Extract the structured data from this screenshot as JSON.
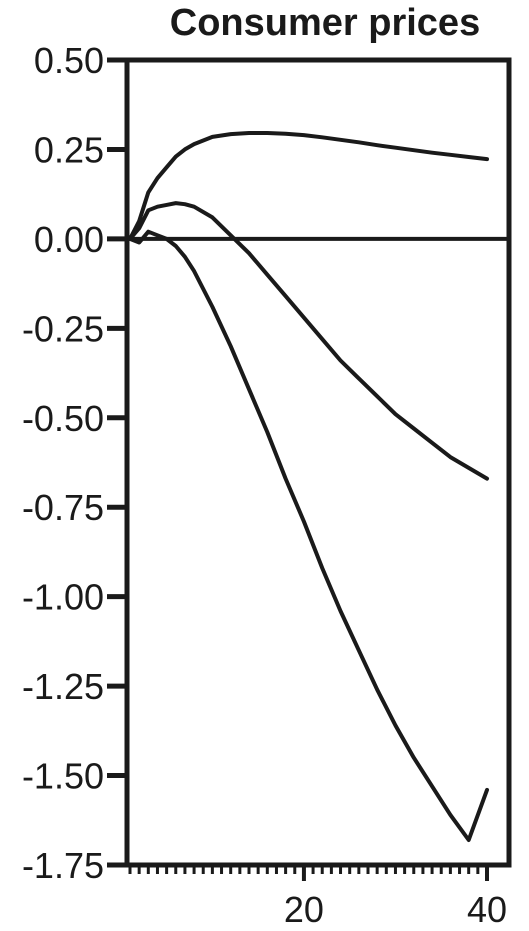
{
  "chart_data": {
    "type": "line",
    "title": "Consumer prices",
    "xlabel": "",
    "ylabel": "",
    "xlim": [
      0,
      42
    ],
    "ylim": [
      -1.75,
      0.5
    ],
    "grid": false,
    "legend": "none",
    "zero_line": true,
    "x_ticks": [
      20,
      40
    ],
    "y_ticks": [
      0.5,
      0.25,
      0.0,
      -0.25,
      -0.5,
      -0.75,
      -1.0,
      -1.25,
      -1.5,
      -1.75
    ],
    "y_tick_labels": [
      "0.50",
      "0.25",
      "0.00",
      "-0.25",
      "-0.50",
      "-0.75",
      "-1.00",
      "-1.25",
      "-1.50",
      "-1.75"
    ],
    "x_tick_labels": [
      "20",
      "40"
    ],
    "series": [
      {
        "x": [
          1,
          2,
          3,
          4,
          5,
          6,
          7,
          8,
          10,
          12,
          14,
          16,
          18,
          20,
          22,
          24,
          26,
          28,
          30,
          32,
          34,
          36,
          38,
          40
        ],
        "values": [
          0.0,
          0.05,
          0.13,
          0.17,
          0.2,
          0.23,
          0.25,
          0.265,
          0.285,
          0.293,
          0.296,
          0.296,
          0.294,
          0.29,
          0.284,
          0.277,
          0.27,
          0.262,
          0.255,
          0.248,
          0.241,
          0.235,
          0.229,
          0.223
        ]
      },
      {
        "x": [
          1,
          2,
          3,
          4,
          5,
          6,
          7,
          8,
          10,
          12,
          14,
          16,
          18,
          20,
          22,
          24,
          26,
          28,
          30,
          32,
          34,
          36,
          38,
          40
        ],
        "values": [
          0.0,
          0.03,
          0.08,
          0.09,
          0.095,
          0.1,
          0.097,
          0.09,
          0.06,
          0.01,
          -0.04,
          -0.1,
          -0.16,
          -0.22,
          -0.28,
          -0.34,
          -0.39,
          -0.44,
          -0.49,
          -0.53,
          -0.57,
          -0.61,
          -0.64,
          -0.67
        ]
      },
      {
        "x": [
          1,
          2,
          3,
          4,
          5,
          6,
          7,
          8,
          10,
          12,
          14,
          16,
          18,
          20,
          22,
          24,
          26,
          28,
          30,
          32,
          34,
          36,
          38,
          40
        ],
        "values": [
          0.0,
          -0.01,
          0.02,
          0.01,
          0.0,
          -0.02,
          -0.05,
          -0.09,
          -0.19,
          -0.3,
          -0.42,
          -0.54,
          -0.67,
          -0.79,
          -0.92,
          -1.04,
          -1.15,
          -1.26,
          -1.36,
          -1.45,
          -1.53,
          -1.61,
          -1.68,
          -1.54
        ]
      }
    ]
  }
}
